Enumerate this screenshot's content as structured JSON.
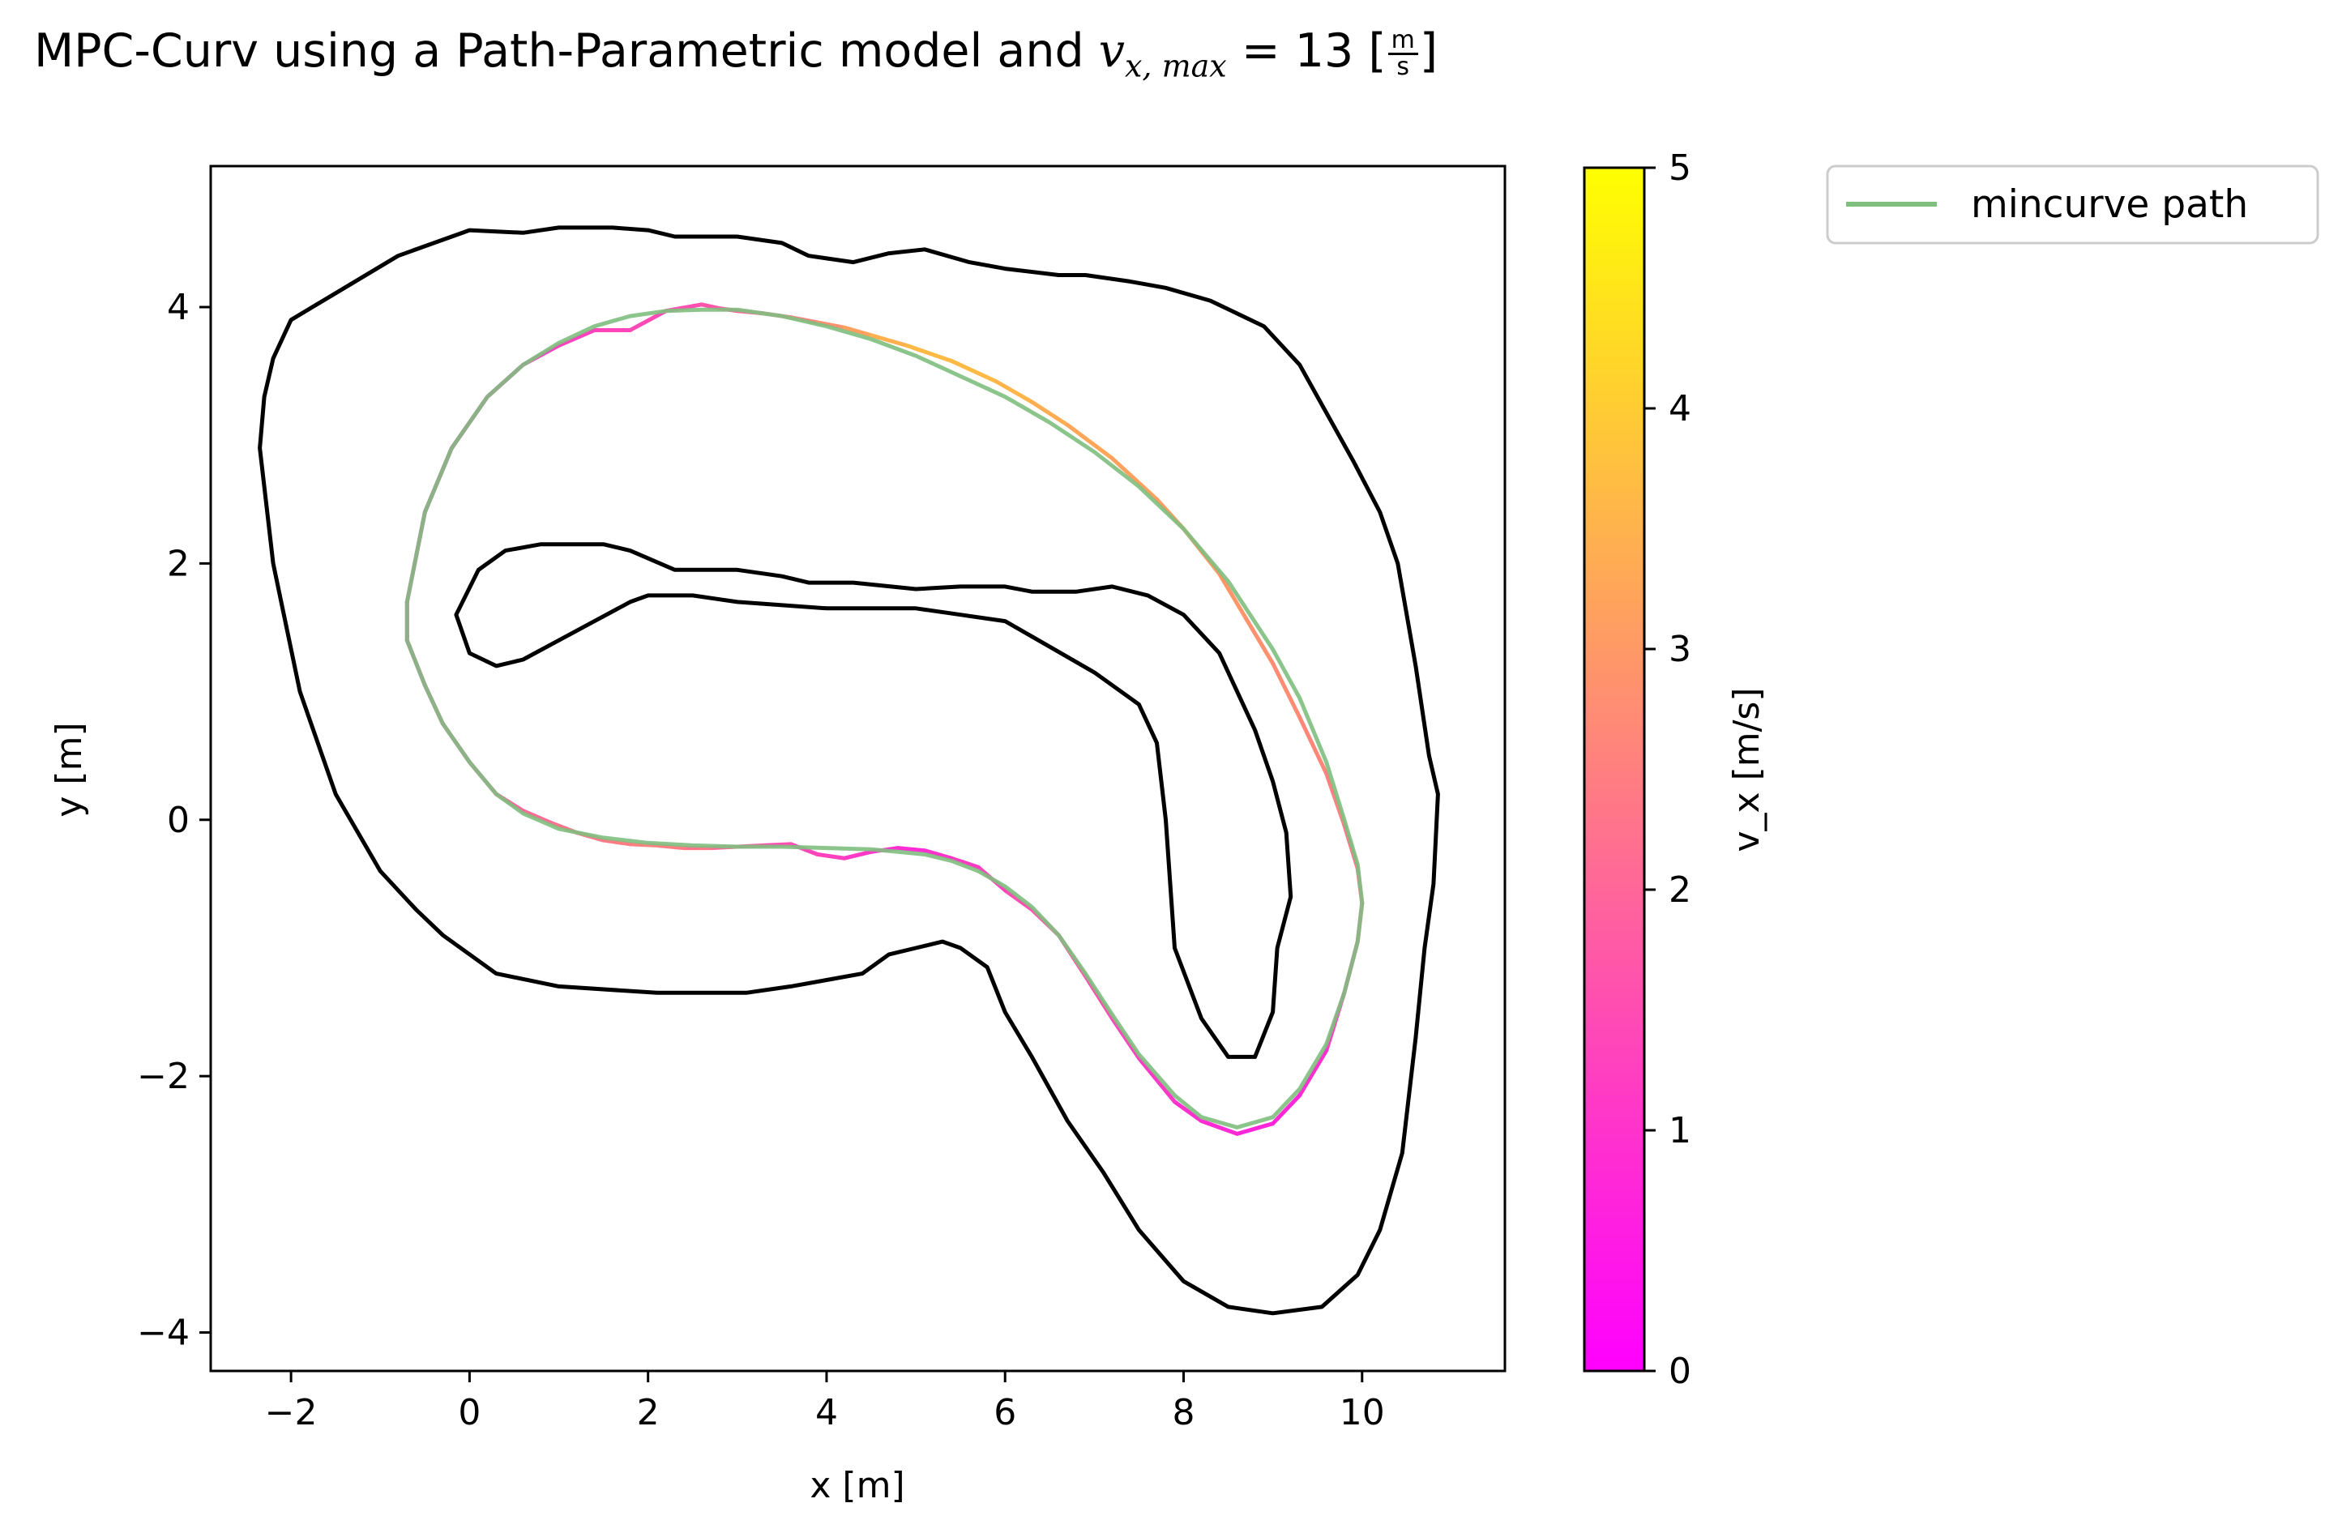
{
  "title": {
    "prefix": "MPC-Curv using a Path-Parametric model and ",
    "var": "v",
    "sub": "x, max",
    "eq": " = 13 [",
    "num": "m",
    "den": "s",
    "close": "]"
  },
  "colors": {
    "boundary": "#000000",
    "mincurve": "#7fbf7f",
    "cmap_low": "#ff00ff",
    "cmap_high": "#ffff00"
  },
  "chart_data": {
    "type": "line",
    "xlabel": "x [m]",
    "ylabel": "y [m]",
    "xlim": [
      -2.9,
      11.6
    ],
    "ylim": [
      -4.3,
      5.1
    ],
    "xticks": [
      -2,
      0,
      2,
      4,
      6,
      8,
      10
    ],
    "yticks": [
      -4,
      -2,
      0,
      2,
      4
    ],
    "xtick_labels": [
      "−2",
      "0",
      "2",
      "4",
      "6",
      "8",
      "10"
    ],
    "ytick_labels": [
      "−4",
      "−2",
      "0",
      "2",
      "4"
    ],
    "grid": false,
    "legend": {
      "position": "outside-top-right",
      "entries": [
        "mincurve path"
      ]
    },
    "colorbar": {
      "label": "v_x [m/s]",
      "range": [
        0,
        5
      ],
      "ticks": [
        0,
        1,
        2,
        3,
        4,
        5
      ],
      "tick_labels": [
        "0",
        "1",
        "2",
        "3",
        "4",
        "5"
      ],
      "colormap": "spring"
    },
    "series": [
      {
        "kind": "boundary-outer",
        "x": [
          -2.0,
          -0.8,
          0.0,
          0.6,
          1.0,
          1.6,
          2.0,
          2.3,
          3.0,
          3.5,
          3.8,
          4.3,
          4.7,
          5.1,
          5.6,
          6.0,
          6.6,
          6.9,
          7.4,
          7.8,
          8.3,
          8.9,
          9.3,
          9.5,
          9.9,
          10.2,
          10.4,
          10.6,
          10.75,
          10.85,
          10.8,
          10.7,
          10.6,
          10.45,
          10.2,
          9.95,
          9.55,
          9.0,
          8.5,
          8.0,
          7.5,
          7.1,
          6.7,
          6.3,
          6.0,
          5.8,
          5.5,
          5.3,
          5.0,
          4.7,
          4.4,
          4.0,
          3.6,
          3.1,
          2.7,
          2.1,
          1.0,
          0.3,
          0.0,
          -0.3,
          -0.6,
          -1.0,
          -1.5,
          -1.9,
          -2.2,
          -2.35,
          -2.3,
          -2.2,
          -2.0
        ],
        "y": [
          3.9,
          4.4,
          4.6,
          4.58,
          4.62,
          4.62,
          4.6,
          4.55,
          4.55,
          4.5,
          4.4,
          4.35,
          4.42,
          4.45,
          4.35,
          4.3,
          4.25,
          4.25,
          4.2,
          4.15,
          4.05,
          3.85,
          3.55,
          3.3,
          2.8,
          2.4,
          2.0,
          1.2,
          0.5,
          0.2,
          -0.5,
          -1.0,
          -1.7,
          -2.6,
          -3.2,
          -3.55,
          -3.8,
          -3.85,
          -3.8,
          -3.6,
          -3.2,
          -2.75,
          -2.35,
          -1.85,
          -1.5,
          -1.15,
          -1.0,
          -0.95,
          -1.0,
          -1.05,
          -1.2,
          -1.25,
          -1.3,
          -1.35,
          -1.35,
          -1.35,
          -1.3,
          -1.2,
          -1.05,
          -0.9,
          -0.7,
          -0.4,
          0.2,
          1.0,
          2.0,
          2.9,
          3.3,
          3.6,
          3.9
        ]
      },
      {
        "kind": "boundary-inner",
        "x": [
          -0.15,
          0.1,
          0.4,
          0.8,
          1.2,
          1.5,
          1.8,
          2.3,
          3.0,
          3.5,
          3.8,
          4.3,
          5.0,
          5.5,
          6.0,
          6.3,
          6.8,
          7.2,
          7.6,
          8.0,
          8.4,
          8.6,
          8.8,
          9.0,
          9.15,
          9.2,
          9.05,
          9.0,
          8.8,
          8.5,
          8.2,
          7.9,
          7.85,
          7.8,
          7.7,
          7.5,
          7.0,
          6.5,
          6.0,
          5.5,
          5.0,
          4.0,
          3.0,
          2.5,
          2.0,
          1.8,
          1.4,
          1.0,
          0.6,
          0.3,
          0.0,
          -0.15
        ],
        "y": [
          1.6,
          1.95,
          2.1,
          2.15,
          2.15,
          2.15,
          2.1,
          1.95,
          1.95,
          1.9,
          1.85,
          1.85,
          1.8,
          1.82,
          1.82,
          1.78,
          1.78,
          1.82,
          1.75,
          1.6,
          1.3,
          1.0,
          0.7,
          0.3,
          -0.1,
          -0.6,
          -1.0,
          -1.5,
          -1.85,
          -1.85,
          -1.55,
          -1.0,
          -0.5,
          0.0,
          0.6,
          0.9,
          1.15,
          1.35,
          1.55,
          1.6,
          1.65,
          1.65,
          1.7,
          1.75,
          1.75,
          1.7,
          1.55,
          1.4,
          1.25,
          1.2,
          1.3,
          1.6
        ]
      },
      {
        "kind": "trajectory",
        "x": [
          -0.7,
          -0.5,
          -0.2,
          0.2,
          0.6,
          1.0,
          1.4,
          1.8,
          2.2,
          2.6,
          2.8,
          3.0,
          3.3,
          3.6,
          3.9,
          4.2,
          4.5,
          4.9,
          5.4,
          5.9,
          6.3,
          6.7,
          7.2,
          7.7,
          8.0,
          8.4,
          8.7,
          9.0,
          9.3,
          9.6,
          9.8,
          9.95,
          10.0,
          9.95,
          9.8,
          9.6,
          9.3,
          9.0,
          8.6,
          8.2,
          7.9,
          7.5,
          7.2,
          6.9,
          6.6,
          6.3,
          6.0,
          5.7,
          5.4,
          5.1,
          4.8,
          4.5,
          4.2,
          3.9,
          3.6,
          3.3,
          3.0,
          2.7,
          2.4,
          2.1,
          1.8,
          1.5,
          1.2,
          0.9,
          0.6,
          0.3,
          0.0,
          -0.3,
          -0.5,
          -0.7,
          -0.7
        ],
        "y": [
          1.7,
          2.4,
          2.9,
          3.3,
          3.55,
          3.7,
          3.82,
          3.82,
          3.97,
          4.02,
          3.99,
          3.97,
          3.95,
          3.92,
          3.88,
          3.84,
          3.78,
          3.7,
          3.58,
          3.42,
          3.26,
          3.08,
          2.82,
          2.5,
          2.27,
          1.92,
          1.57,
          1.22,
          0.8,
          0.36,
          -0.04,
          -0.38,
          -0.65,
          -0.95,
          -1.35,
          -1.8,
          -2.15,
          -2.37,
          -2.45,
          -2.35,
          -2.2,
          -1.86,
          -1.55,
          -1.22,
          -0.9,
          -0.7,
          -0.55,
          -0.37,
          -0.3,
          -0.24,
          -0.22,
          -0.25,
          -0.3,
          -0.27,
          -0.19,
          -0.2,
          -0.21,
          -0.22,
          -0.22,
          -0.2,
          -0.19,
          -0.16,
          -0.1,
          -0.02,
          0.07,
          0.2,
          0.45,
          0.75,
          1.05,
          1.4,
          1.7
        ],
        "v": [
          1.1,
          1.0,
          1.0,
          1.0,
          1.1,
          1.2,
          1.3,
          1.4,
          1.5,
          1.6,
          1.7,
          1.9,
          2.1,
          2.4,
          2.7,
          3.0,
          3.3,
          3.6,
          3.7,
          3.6,
          3.5,
          3.3,
          3.2,
          3.1,
          3.0,
          3.0,
          2.9,
          2.8,
          2.7,
          2.6,
          2.4,
          2.2,
          1.9,
          1.6,
          1.3,
          1.0,
          0.8,
          0.7,
          0.8,
          0.9,
          1.0,
          1.2,
          1.4,
          1.6,
          1.7,
          1.6,
          1.4,
          1.2,
          1.1,
          0.9,
          0.8,
          1.0,
          1.2,
          1.3,
          1.4,
          1.6,
          1.9,
          2.2,
          2.4,
          2.5,
          2.5,
          2.4,
          2.3,
          2.2,
          2.0,
          1.8,
          1.6,
          1.4,
          1.2,
          1.1,
          1.1
        ]
      },
      {
        "name": "mincurve path",
        "kind": "mincurve",
        "x": [
          -0.7,
          -0.5,
          -0.2,
          0.2,
          0.6,
          1.0,
          1.4,
          1.8,
          2.2,
          2.6,
          3.0,
          3.5,
          4.0,
          4.5,
          5.0,
          5.5,
          6.0,
          6.5,
          7.0,
          7.5,
          8.0,
          8.5,
          9.0,
          9.3,
          9.6,
          9.8,
          9.95,
          10.0,
          9.95,
          9.8,
          9.6,
          9.3,
          9.0,
          8.6,
          8.2,
          7.9,
          7.5,
          7.2,
          6.9,
          6.6,
          6.3,
          6.0,
          5.7,
          5.4,
          5.1,
          4.8,
          4.5,
          4.0,
          3.5,
          3.0,
          2.5,
          2.0,
          1.5,
          1.0,
          0.6,
          0.3,
          0.0,
          -0.3,
          -0.5,
          -0.7
        ],
        "y": [
          1.7,
          2.4,
          2.9,
          3.3,
          3.55,
          3.72,
          3.85,
          3.93,
          3.97,
          3.98,
          3.98,
          3.93,
          3.85,
          3.75,
          3.62,
          3.46,
          3.3,
          3.1,
          2.87,
          2.6,
          2.27,
          1.86,
          1.33,
          0.95,
          0.45,
          0.0,
          -0.35,
          -0.65,
          -0.95,
          -1.35,
          -1.75,
          -2.1,
          -2.32,
          -2.4,
          -2.32,
          -2.15,
          -1.83,
          -1.52,
          -1.2,
          -0.9,
          -0.68,
          -0.52,
          -0.4,
          -0.32,
          -0.27,
          -0.25,
          -0.23,
          -0.22,
          -0.21,
          -0.21,
          -0.2,
          -0.18,
          -0.14,
          -0.07,
          0.05,
          0.2,
          0.45,
          0.75,
          1.05,
          1.4
        ]
      }
    ]
  }
}
